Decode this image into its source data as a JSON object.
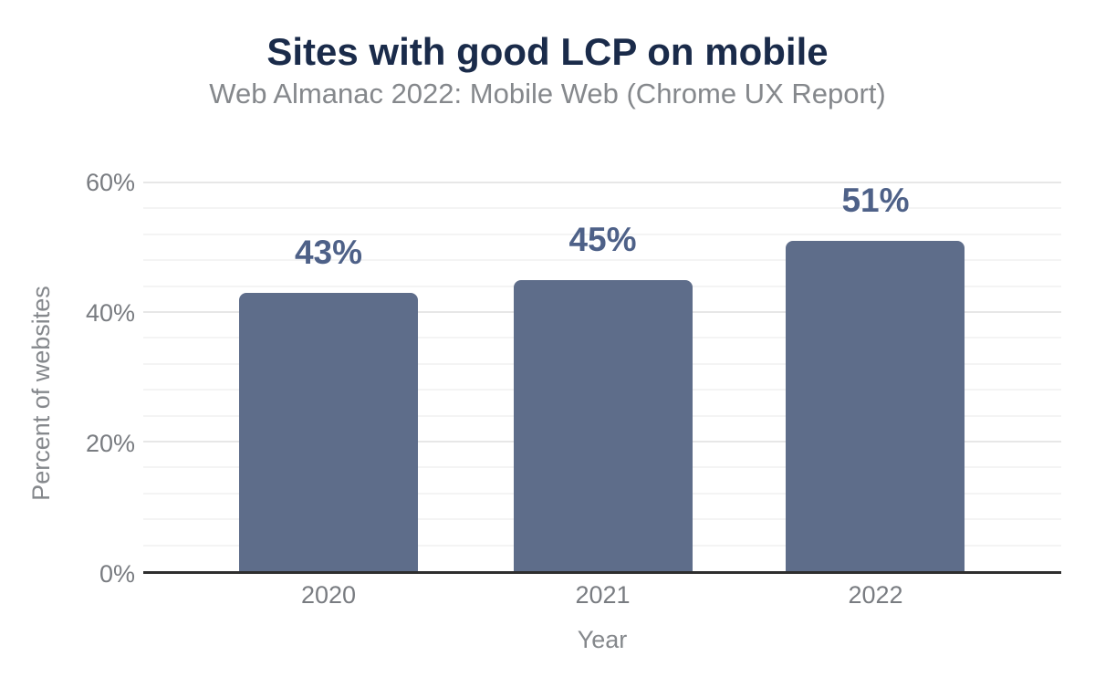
{
  "chart_data": {
    "type": "bar",
    "title": "Sites with good LCP on mobile",
    "subtitle": "Web Almanac 2022: Mobile Web (Chrome UX Report)",
    "categories": [
      "2020",
      "2021",
      "2022"
    ],
    "values": [
      43,
      45,
      51
    ],
    "data_labels": [
      "43%",
      "45%",
      "51%"
    ],
    "xlabel": "Year",
    "ylabel": "Percent of websites",
    "ylim": [
      0,
      60
    ],
    "y_major_step": 20,
    "y_minor_step": 4,
    "y_ticks": [
      "0%",
      "20%",
      "40%",
      "60%"
    ],
    "grid": true,
    "legend": false
  },
  "colors": {
    "bar": "#5e6d8a",
    "data_label": "#4e6188",
    "title": "#1a2b4a",
    "subtitle": "#85888c",
    "tick_label": "#797c81",
    "axis_title": "#85888c",
    "gridline_major": "#e7e7e7",
    "gridline_minor": "#f4f4f4",
    "axis_line": "#2e2e2e",
    "background": "#ffffff"
  }
}
